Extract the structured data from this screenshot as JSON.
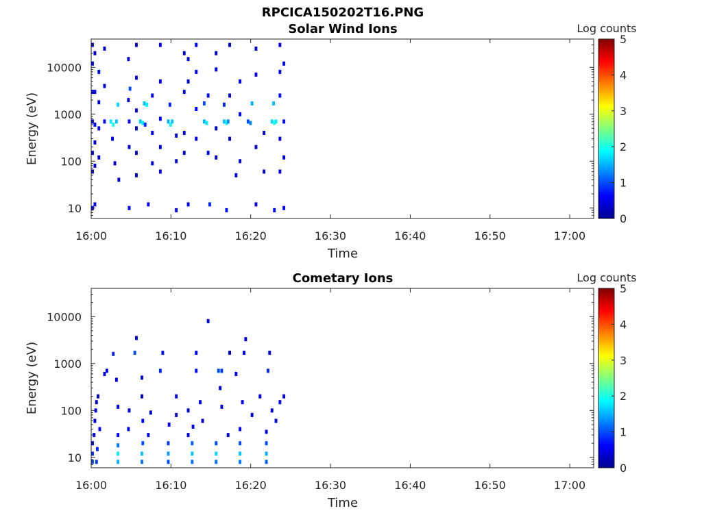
{
  "figure_title": "RPCICA150202T16.PNG",
  "chart_data": [
    {
      "type": "heatmap",
      "title": "Solar Wind Ions",
      "xlabel": "Time",
      "ylabel": "Energy (eV)",
      "yscale": "log",
      "ylim": [
        6,
        40000
      ],
      "xlim": [
        "16:00",
        "17:03"
      ],
      "x_ticks": [
        "16:00",
        "16:10",
        "16:20",
        "16:30",
        "16:40",
        "16:50",
        "17:00"
      ],
      "y_ticks": [
        10,
        100,
        1000,
        10000
      ],
      "y_tick_labels": [
        "10",
        "100",
        "1000",
        "10000"
      ],
      "colorbar": {
        "label": "Log counts",
        "min": 0,
        "max": 5,
        "ticks": [
          "0",
          "1",
          "2",
          "3",
          "4",
          "5"
        ],
        "colormap": "jet"
      },
      "data_time_range": [
        "16:00",
        "16:24"
      ],
      "cells": [
        {
          "t": 16.0,
          "e": 30000,
          "v": 0.5
        },
        {
          "t": 16.0,
          "e": 12000,
          "v": 0.5
        },
        {
          "t": 16.0,
          "e": 3000,
          "v": 0.6
        },
        {
          "t": 16.0,
          "e": 700,
          "v": 0.6
        },
        {
          "t": 16.0,
          "e": 150,
          "v": 0.4
        },
        {
          "t": 16.0,
          "e": 60,
          "v": 0.4
        },
        {
          "t": 16.0,
          "e": 10,
          "v": 0.5
        },
        {
          "t": 16.3,
          "e": 20000,
          "v": 0.4
        },
        {
          "t": 16.3,
          "e": 3000,
          "v": 0.5
        },
        {
          "t": 16.3,
          "e": 600,
          "v": 0.6
        },
        {
          "t": 16.3,
          "e": 250,
          "v": 0.4
        },
        {
          "t": 16.3,
          "e": 80,
          "v": 0.4
        },
        {
          "t": 16.3,
          "e": 12,
          "v": 0.6
        },
        {
          "t": 16.8,
          "e": 8000,
          "v": 0.5
        },
        {
          "t": 16.8,
          "e": 1800,
          "v": 0.4
        },
        {
          "t": 16.8,
          "e": 500,
          "v": 0.5
        },
        {
          "t": 16.8,
          "e": 120,
          "v": 0.4
        },
        {
          "t": 17.5,
          "e": 25000,
          "v": 0.4
        },
        {
          "t": 17.5,
          "e": 4000,
          "v": 0.5
        },
        {
          "t": 17.5,
          "e": 700,
          "v": 0.6
        },
        {
          "t": 18.3,
          "e": 700,
          "v": 1.8
        },
        {
          "t": 18.6,
          "e": 600,
          "v": 2.0
        },
        {
          "t": 19.0,
          "e": 700,
          "v": 1.6
        },
        {
          "t": 19.2,
          "e": 1600,
          "v": 1.7
        },
        {
          "t": 18.5,
          "e": 300,
          "v": 0.5
        },
        {
          "t": 18.8,
          "e": 90,
          "v": 0.4
        },
        {
          "t": 19.3,
          "e": 40,
          "v": 0.4
        },
        {
          "t": 20.5,
          "e": 15000,
          "v": 0.5
        },
        {
          "t": 20.5,
          "e": 2000,
          "v": 0.5
        },
        {
          "t": 20.7,
          "e": 3500,
          "v": 1.0
        },
        {
          "t": 20.6,
          "e": 700,
          "v": 0.6
        },
        {
          "t": 20.6,
          "e": 200,
          "v": 0.4
        },
        {
          "t": 20.6,
          "e": 10,
          "v": 0.5
        },
        {
          "t": 21.5,
          "e": 30000,
          "v": 0.4
        },
        {
          "t": 21.5,
          "e": 6000,
          "v": 0.5
        },
        {
          "t": 21.5,
          "e": 1200,
          "v": 0.5
        },
        {
          "t": 21.5,
          "e": 500,
          "v": 0.4
        },
        {
          "t": 21.5,
          "e": 150,
          "v": 0.4
        },
        {
          "t": 21.5,
          "e": 50,
          "v": 0.4
        },
        {
          "t": 22.0,
          "e": 700,
          "v": 1.6
        },
        {
          "t": 22.3,
          "e": 650,
          "v": 1.8
        },
        {
          "t": 22.5,
          "e": 1700,
          "v": 1.6
        },
        {
          "t": 22.8,
          "e": 1600,
          "v": 1.8
        },
        {
          "t": 22.6,
          "e": 600,
          "v": 0.8
        },
        {
          "t": 23.0,
          "e": 12,
          "v": 0.6
        },
        {
          "t": 23.5,
          "e": 2500,
          "v": 0.5
        },
        {
          "t": 23.5,
          "e": 400,
          "v": 0.5
        },
        {
          "t": 23.5,
          "e": 90,
          "v": 0.4
        },
        {
          "t": 24.5,
          "e": 30000,
          "v": 0.5
        },
        {
          "t": 24.5,
          "e": 5000,
          "v": 0.5
        },
        {
          "t": 24.5,
          "e": 800,
          "v": 0.6
        },
        {
          "t": 24.5,
          "e": 200,
          "v": 0.4
        },
        {
          "t": 24.5,
          "e": 60,
          "v": 0.4
        },
        {
          "t": 25.5,
          "e": 700,
          "v": 1.5
        },
        {
          "t": 25.8,
          "e": 600,
          "v": 1.9
        },
        {
          "t": 26.0,
          "e": 700,
          "v": 1.6
        },
        {
          "t": 25.7,
          "e": 1600,
          "v": 0.8
        },
        {
          "t": 26.5,
          "e": 350,
          "v": 0.5
        },
        {
          "t": 26.5,
          "e": 100,
          "v": 0.5
        },
        {
          "t": 26.5,
          "e": 9,
          "v": 0.6
        },
        {
          "t": 27.5,
          "e": 20000,
          "v": 0.4
        },
        {
          "t": 27.5,
          "e": 3000,
          "v": 0.5
        },
        {
          "t": 27.5,
          "e": 400,
          "v": 0.5
        },
        {
          "t": 27.5,
          "e": 150,
          "v": 0.4
        },
        {
          "t": 28.0,
          "e": 15000,
          "v": 0.5
        },
        {
          "t": 28.0,
          "e": 5000,
          "v": 0.4
        },
        {
          "t": 28.0,
          "e": 12,
          "v": 0.6
        },
        {
          "t": 29.0,
          "e": 30000,
          "v": 0.5
        },
        {
          "t": 29.0,
          "e": 8000,
          "v": 0.5
        },
        {
          "t": 29.0,
          "e": 1300,
          "v": 0.6
        },
        {
          "t": 29.0,
          "e": 300,
          "v": 0.4
        },
        {
          "t": 30.0,
          "e": 700,
          "v": 1.5
        },
        {
          "t": 30.3,
          "e": 650,
          "v": 1.8
        },
        {
          "t": 30.0,
          "e": 1700,
          "v": 1.0
        },
        {
          "t": 30.5,
          "e": 2500,
          "v": 0.5
        },
        {
          "t": 30.5,
          "e": 150,
          "v": 0.5
        },
        {
          "t": 30.7,
          "e": 12,
          "v": 0.8
        },
        {
          "t": 31.5,
          "e": 20000,
          "v": 0.4
        },
        {
          "t": 31.5,
          "e": 9000,
          "v": 0.5
        },
        {
          "t": 31.5,
          "e": 500,
          "v": 0.4
        },
        {
          "t": 31.5,
          "e": 120,
          "v": 0.4
        },
        {
          "t": 32.5,
          "e": 700,
          "v": 1.6
        },
        {
          "t": 32.8,
          "e": 650,
          "v": 1.9
        },
        {
          "t": 33.0,
          "e": 700,
          "v": 1.3
        },
        {
          "t": 32.5,
          "e": 1600,
          "v": 0.8
        },
        {
          "t": 32.8,
          "e": 9,
          "v": 0.7
        },
        {
          "t": 33.2,
          "e": 30000,
          "v": 0.4
        },
        {
          "t": 33.2,
          "e": 2500,
          "v": 0.5
        },
        {
          "t": 33.2,
          "e": 300,
          "v": 0.4
        },
        {
          "t": 34.0,
          "e": 50,
          "v": 0.4
        },
        {
          "t": 34.5,
          "e": 5000,
          "v": 0.5
        },
        {
          "t": 34.5,
          "e": 1000,
          "v": 0.5
        },
        {
          "t": 34.5,
          "e": 100,
          "v": 0.4
        },
        {
          "t": 35.5,
          "e": 700,
          "v": 1.0
        },
        {
          "t": 35.8,
          "e": 650,
          "v": 1.3
        },
        {
          "t": 36.0,
          "e": 1700,
          "v": 1.5
        },
        {
          "t": 36.5,
          "e": 25000,
          "v": 0.4
        },
        {
          "t": 36.5,
          "e": 7000,
          "v": 0.5
        },
        {
          "t": 36.5,
          "e": 200,
          "v": 0.4
        },
        {
          "t": 36.5,
          "e": 12,
          "v": 0.5
        },
        {
          "t": 37.5,
          "e": 400,
          "v": 0.5
        },
        {
          "t": 37.5,
          "e": 60,
          "v": 0.4
        },
        {
          "t": 38.5,
          "e": 700,
          "v": 1.7
        },
        {
          "t": 38.8,
          "e": 650,
          "v": 2.1
        },
        {
          "t": 39.0,
          "e": 700,
          "v": 1.8
        },
        {
          "t": 38.7,
          "e": 1700,
          "v": 1.6
        },
        {
          "t": 38.8,
          "e": 9,
          "v": 0.6
        },
        {
          "t": 39.5,
          "e": 30000,
          "v": 0.5
        },
        {
          "t": 39.5,
          "e": 8000,
          "v": 0.5
        },
        {
          "t": 39.5,
          "e": 2500,
          "v": 0.6
        },
        {
          "t": 39.5,
          "e": 300,
          "v": 0.4
        },
        {
          "t": 39.5,
          "e": 60,
          "v": 0.4
        },
        {
          "t": 40.0,
          "e": 12000,
          "v": 0.5
        },
        {
          "t": 40.0,
          "e": 700,
          "v": 0.6
        },
        {
          "t": 40.0,
          "e": 120,
          "v": 0.4
        },
        {
          "t": 40.0,
          "e": 10,
          "v": 0.6
        }
      ]
    },
    {
      "type": "heatmap",
      "title": "Cometary Ions",
      "xlabel": "Time",
      "ylabel": "Energy (eV)",
      "yscale": "log",
      "ylim": [
        6,
        40000
      ],
      "xlim": [
        "16:00",
        "17:03"
      ],
      "x_ticks": [
        "16:00",
        "16:10",
        "16:20",
        "16:30",
        "16:40",
        "16:50",
        "17:00"
      ],
      "y_ticks": [
        10,
        100,
        1000,
        10000
      ],
      "y_tick_labels": [
        "10",
        "100",
        "1000",
        "10000"
      ],
      "colorbar": {
        "label": "Log counts",
        "min": 0,
        "max": 5,
        "ticks": [
          "0",
          "1",
          "2",
          "3",
          "4",
          "5"
        ],
        "colormap": "jet"
      },
      "data_time_range": [
        "16:00",
        "16:24"
      ],
      "cells": [
        {
          "t": 16.0,
          "e": 8,
          "v": 1.0
        },
        {
          "t": 16.0,
          "e": 12,
          "v": 0.8
        },
        {
          "t": 16.0,
          "e": 20,
          "v": 0.6
        },
        {
          "t": 16.2,
          "e": 30,
          "v": 0.6
        },
        {
          "t": 16.3,
          "e": 60,
          "v": 0.5
        },
        {
          "t": 16.4,
          "e": 100,
          "v": 0.5
        },
        {
          "t": 16.5,
          "e": 150,
          "v": 0.4
        },
        {
          "t": 16.7,
          "e": 200,
          "v": 0.4
        },
        {
          "t": 16.5,
          "e": 8,
          "v": 0.9
        },
        {
          "t": 16.6,
          "e": 15,
          "v": 0.8
        },
        {
          "t": 16.9,
          "e": 40,
          "v": 0.6
        },
        {
          "t": 17.5,
          "e": 600,
          "v": 0.5
        },
        {
          "t": 17.8,
          "e": 700,
          "v": 0.5
        },
        {
          "t": 18.6,
          "e": 1600,
          "v": 0.8
        },
        {
          "t": 19.2,
          "e": 8,
          "v": 1.5
        },
        {
          "t": 19.2,
          "e": 12,
          "v": 1.8
        },
        {
          "t": 19.2,
          "e": 18,
          "v": 1.2
        },
        {
          "t": 19.2,
          "e": 30,
          "v": 0.6
        },
        {
          "t": 19.2,
          "e": 120,
          "v": 0.5
        },
        {
          "t": 19.0,
          "e": 450,
          "v": 0.4
        },
        {
          "t": 20.5,
          "e": 40,
          "v": 0.6
        },
        {
          "t": 20.6,
          "e": 100,
          "v": 0.4
        },
        {
          "t": 21.3,
          "e": 1700,
          "v": 1.0
        },
        {
          "t": 21.5,
          "e": 3500,
          "v": 0.5
        },
        {
          "t": 22.2,
          "e": 8,
          "v": 1.2
        },
        {
          "t": 22.2,
          "e": 12,
          "v": 1.6
        },
        {
          "t": 22.3,
          "e": 20,
          "v": 1.0
        },
        {
          "t": 22.3,
          "e": 60,
          "v": 0.6
        },
        {
          "t": 22.2,
          "e": 200,
          "v": 0.4
        },
        {
          "t": 22.2,
          "e": 500,
          "v": 0.5
        },
        {
          "t": 23.0,
          "e": 30,
          "v": 0.5
        },
        {
          "t": 23.3,
          "e": 90,
          "v": 0.4
        },
        {
          "t": 24.5,
          "e": 700,
          "v": 0.8
        },
        {
          "t": 24.8,
          "e": 1700,
          "v": 0.7
        },
        {
          "t": 25.5,
          "e": 8,
          "v": 1.0
        },
        {
          "t": 25.5,
          "e": 12,
          "v": 1.4
        },
        {
          "t": 25.5,
          "e": 20,
          "v": 0.9
        },
        {
          "t": 25.6,
          "e": 50,
          "v": 0.6
        },
        {
          "t": 26.5,
          "e": 200,
          "v": 0.5
        },
        {
          "t": 26.5,
          "e": 80,
          "v": 0.4
        },
        {
          "t": 28.0,
          "e": 30,
          "v": 0.5
        },
        {
          "t": 28.0,
          "e": 100,
          "v": 0.4
        },
        {
          "t": 28.5,
          "e": 8,
          "v": 1.2
        },
        {
          "t": 28.5,
          "e": 12,
          "v": 1.6
        },
        {
          "t": 28.5,
          "e": 20,
          "v": 1.1
        },
        {
          "t": 28.6,
          "e": 45,
          "v": 0.6
        },
        {
          "t": 29.0,
          "e": 700,
          "v": 0.7
        },
        {
          "t": 29.0,
          "e": 1700,
          "v": 0.6
        },
        {
          "t": 29.5,
          "e": 150,
          "v": 0.5
        },
        {
          "t": 29.8,
          "e": 60,
          "v": 0.4
        },
        {
          "t": 30.5,
          "e": 8000,
          "v": 0.4
        },
        {
          "t": 31.5,
          "e": 8,
          "v": 1.2
        },
        {
          "t": 31.5,
          "e": 12,
          "v": 1.7
        },
        {
          "t": 31.5,
          "e": 20,
          "v": 1.0
        },
        {
          "t": 31.8,
          "e": 700,
          "v": 1.0
        },
        {
          "t": 32.2,
          "e": 700,
          "v": 0.9
        },
        {
          "t": 32.0,
          "e": 300,
          "v": 0.5
        },
        {
          "t": 32.2,
          "e": 120,
          "v": 0.4
        },
        {
          "t": 33.0,
          "e": 30,
          "v": 0.5
        },
        {
          "t": 33.2,
          "e": 1700,
          "v": 0.4
        },
        {
          "t": 34.5,
          "e": 8,
          "v": 1.2
        },
        {
          "t": 34.5,
          "e": 12,
          "v": 1.6
        },
        {
          "t": 34.5,
          "e": 20,
          "v": 1.0
        },
        {
          "t": 34.5,
          "e": 40,
          "v": 0.6
        },
        {
          "t": 34.0,
          "e": 600,
          "v": 0.5
        },
        {
          "t": 35.0,
          "e": 1700,
          "v": 0.5
        },
        {
          "t": 35.2,
          "e": 3300,
          "v": 0.4
        },
        {
          "t": 34.8,
          "e": 150,
          "v": 0.5
        },
        {
          "t": 36.0,
          "e": 80,
          "v": 0.4
        },
        {
          "t": 37.0,
          "e": 200,
          "v": 0.5
        },
        {
          "t": 37.8,
          "e": 8,
          "v": 1.1
        },
        {
          "t": 37.8,
          "e": 12,
          "v": 1.5
        },
        {
          "t": 37.8,
          "e": 20,
          "v": 1.0
        },
        {
          "t": 37.8,
          "e": 35,
          "v": 0.6
        },
        {
          "t": 38.0,
          "e": 700,
          "v": 0.8
        },
        {
          "t": 38.2,
          "e": 1700,
          "v": 0.6
        },
        {
          "t": 38.5,
          "e": 100,
          "v": 0.4
        },
        {
          "t": 39.0,
          "e": 60,
          "v": 0.4
        },
        {
          "t": 39.5,
          "e": 150,
          "v": 0.5
        },
        {
          "t": 40.0,
          "e": 200,
          "v": 0.4
        }
      ]
    }
  ]
}
